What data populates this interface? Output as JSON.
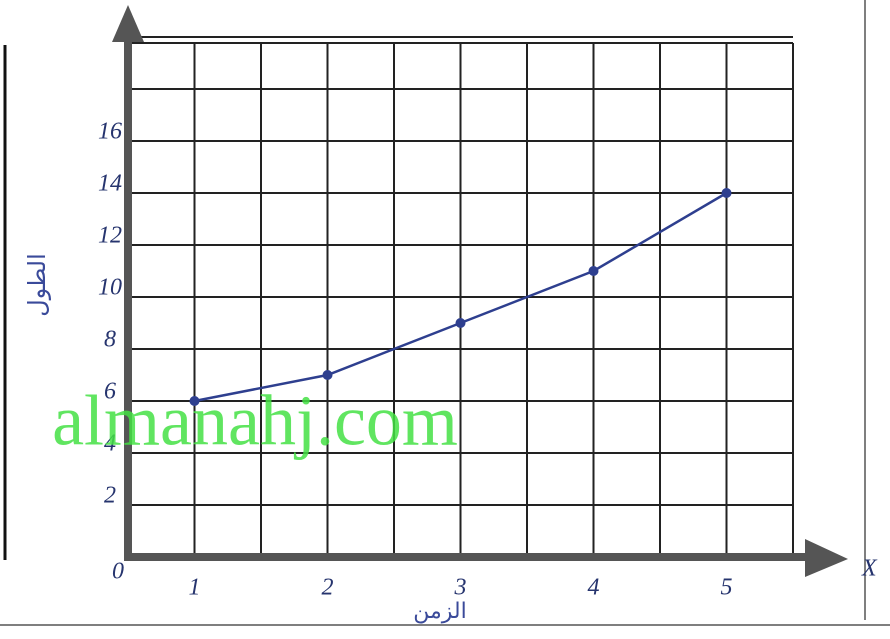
{
  "chart_data": {
    "type": "line",
    "x_axis_label": "الزمن",
    "y_axis_label": "الطول",
    "x_axis_letter": "X",
    "x": [
      1,
      2,
      3,
      4,
      5
    ],
    "series": [
      {
        "color": "#2e3f8f",
        "values": [
          6,
          7,
          9,
          11,
          14
        ]
      }
    ],
    "xlim": [
      0.5,
      5.5
    ],
    "xticks": [
      1,
      2,
      3,
      4,
      5
    ],
    "ylim": [
      0,
      20
    ],
    "yticks": [
      0,
      2,
      4,
      6,
      8,
      10,
      12,
      14,
      16
    ],
    "grid": true,
    "watermark": "almanahj.com"
  }
}
